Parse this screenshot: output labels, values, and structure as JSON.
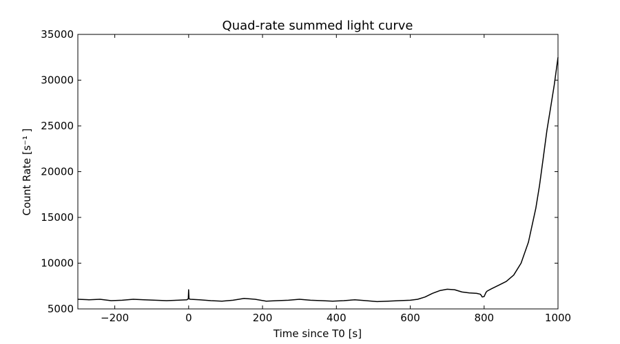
{
  "chart_data": {
    "type": "line",
    "title": "Quad-rate summed light curve",
    "xlabel": "Time since T0 [s]",
    "ylabel": "Count Rate [s⁻¹ ]",
    "xlim": [
      -300,
      1000
    ],
    "ylim": [
      5000,
      35000
    ],
    "xticks": [
      -200,
      0,
      200,
      400,
      600,
      800,
      1000
    ],
    "xtick_labels": [
      "−200",
      "0",
      "200",
      "400",
      "600",
      "800",
      "1000"
    ],
    "yticks": [
      5000,
      10000,
      15000,
      20000,
      25000,
      30000,
      35000
    ],
    "ytick_labels": [
      "5000",
      "10000",
      "15000",
      "20000",
      "25000",
      "30000",
      "35000"
    ],
    "grid": false,
    "line_color": "#000000",
    "series": [
      {
        "x": [
          -300,
          -270,
          -240,
          -210,
          -180,
          -150,
          -120,
          -90,
          -60,
          -30,
          -5,
          -1,
          0,
          1,
          5,
          30,
          60,
          90,
          120,
          150,
          180,
          210,
          240,
          270,
          300,
          330,
          360,
          390,
          420,
          450,
          480,
          510,
          540,
          570,
          600,
          620,
          640,
          660,
          680,
          700,
          720,
          740,
          760,
          780,
          790,
          795,
          800,
          805,
          808,
          820,
          840,
          860,
          880,
          900,
          920,
          940,
          950,
          960,
          970,
          980,
          990,
          1000
        ],
        "y": [
          6050,
          6000,
          6050,
          5900,
          5950,
          6050,
          6000,
          5950,
          5900,
          5950,
          6000,
          6100,
          7100,
          6100,
          6050,
          6000,
          5900,
          5850,
          5950,
          6150,
          6050,
          5850,
          5900,
          5950,
          6050,
          5950,
          5900,
          5850,
          5900,
          6000,
          5900,
          5800,
          5850,
          5900,
          5950,
          6050,
          6300,
          6700,
          7000,
          7150,
          7100,
          6850,
          6750,
          6700,
          6600,
          6300,
          6350,
          6800,
          6950,
          7200,
          7600,
          8000,
          8700,
          10000,
          12300,
          16000,
          18500,
          21500,
          24500,
          27000,
          29500,
          32500
        ]
      }
    ]
  }
}
